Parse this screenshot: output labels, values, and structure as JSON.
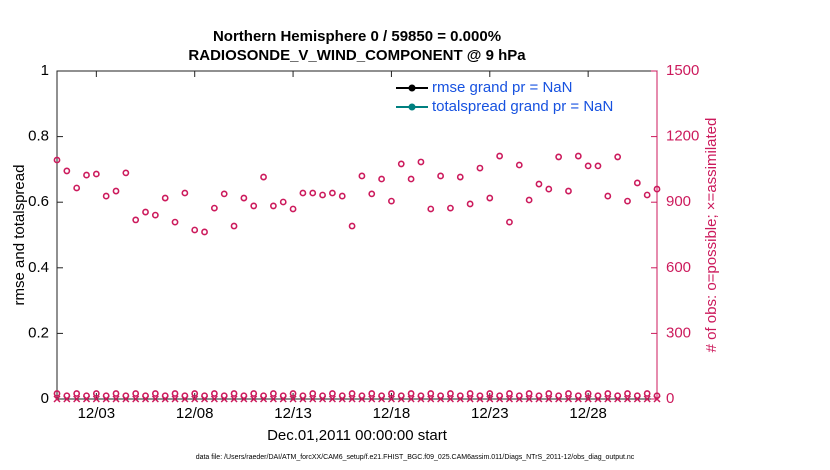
{
  "chart_data": {
    "type": "scatter",
    "title": "Northern Hemisphere 0 / 59850 = 0.000%",
    "subtitle": "RADIOSONDE_V_WIND_COMPONENT @ 9 hPa",
    "xlabel": "Dec.01,2011 00:00:00 start",
    "ylabel": "rmse and totalspread",
    "y2label": "# of obs: o=possible; ×=assimilated",
    "footnote": "data file: /Users/raeder/DAI/ATM_forcXX/CAM6_setup/f.e21.FHIST_BGC.f09_025.CAM6assim.011/Diags_NTrS_2011-12/obs_diag_output.nc",
    "xlim": [
      1,
      31.5
    ],
    "xticks": [
      {
        "value": 3,
        "label": "12/03"
      },
      {
        "value": 8,
        "label": "12/08"
      },
      {
        "value": 13,
        "label": "12/13"
      },
      {
        "value": 18,
        "label": "12/18"
      },
      {
        "value": 23,
        "label": "12/23"
      },
      {
        "value": 28,
        "label": "12/28"
      }
    ],
    "ylim": [
      0,
      1
    ],
    "yticks": [
      0,
      0.2,
      0.4,
      0.6,
      0.8,
      1
    ],
    "y2lim": [
      0,
      1500
    ],
    "y2ticks": [
      0,
      300,
      600,
      900,
      1200,
      1500
    ],
    "y2color": "#cc1a5c",
    "legend": "upper right",
    "legend_text_color": "#1752e0",
    "grid": false,
    "x": [
      1,
      1.5,
      2,
      2.5,
      3,
      3.5,
      4,
      4.5,
      5,
      5.5,
      6,
      6.5,
      7,
      7.5,
      8,
      8.5,
      9,
      9.5,
      10,
      10.5,
      11,
      11.5,
      12,
      12.5,
      13,
      13.5,
      14,
      14.5,
      15,
      15.5,
      16,
      16.5,
      17,
      17.5,
      18,
      18.5,
      19,
      19.5,
      20,
      20.5,
      21,
      21.5,
      22,
      22.5,
      23,
      23.5,
      24,
      24.5,
      25,
      25.5,
      26,
      26.5,
      27,
      27.5,
      28,
      28.5,
      29,
      29.5,
      30,
      30.5,
      31,
      31.5
    ],
    "series": [
      {
        "name": "rmse grand pr = NaN",
        "color": "#000000",
        "axis": "y",
        "values": [
          null,
          null,
          null,
          null,
          null,
          null,
          null,
          null,
          null,
          null,
          null,
          null,
          null,
          null,
          null,
          null,
          null,
          null,
          null,
          null,
          null,
          null,
          null,
          null,
          null,
          null,
          null,
          null,
          null,
          null,
          null,
          null,
          null,
          null,
          null,
          null,
          null,
          null,
          null,
          null,
          null,
          null,
          null,
          null,
          null,
          null,
          null,
          null,
          null,
          null,
          null,
          null,
          null,
          null,
          null,
          null,
          null,
          null,
          null,
          null,
          null,
          null
        ]
      },
      {
        "name": "totalspread grand pr = NaN",
        "color": "#008080",
        "axis": "y",
        "values": [
          null,
          null,
          null,
          null,
          null,
          null,
          null,
          null,
          null,
          null,
          null,
          null,
          null,
          null,
          null,
          null,
          null,
          null,
          null,
          null,
          null,
          null,
          null,
          null,
          null,
          null,
          null,
          null,
          null,
          null,
          null,
          null,
          null,
          null,
          null,
          null,
          null,
          null,
          null,
          null,
          null,
          null,
          null,
          null,
          null,
          null,
          null,
          null,
          null,
          null,
          null,
          null,
          null,
          null,
          null,
          null,
          null,
          null,
          null,
          null,
          null,
          null
        ]
      },
      {
        "color": "#cc1a5c",
        "axis": "y2",
        "marker": "o",
        "values": [
          1093,
          1043,
          965,
          1024,
          1029,
          928,
          951,
          1034,
          819,
          855,
          841,
          919,
          809,
          942,
          773,
          764,
          873,
          938,
          791,
          919,
          883,
          1015,
          883,
          901,
          869,
          942,
          942,
          933,
          942,
          928,
          791,
          1020,
          938,
          1006,
          905,
          1075,
          1006,
          1084,
          869,
          1020,
          873,
          1015,
          892,
          1056,
          919,
          1111,
          809,
          1070,
          910,
          983,
          960,
          1107,
          951,
          1111,
          1066,
          1066,
          928,
          1107,
          905,
          988,
          933,
          960
        ]
      },
      {
        "color": "#cc1a5c",
        "axis": "y2",
        "marker": "o",
        "values": [
          25,
          15,
          25,
          15,
          25,
          15,
          25,
          15,
          25,
          15,
          25,
          15,
          25,
          15,
          25,
          15,
          25,
          15,
          25,
          15,
          25,
          15,
          25,
          15,
          25,
          15,
          25,
          15,
          25,
          15,
          25,
          15,
          25,
          15,
          25,
          15,
          25,
          15,
          25,
          15,
          25,
          15,
          25,
          15,
          25,
          15,
          25,
          15,
          25,
          15,
          25,
          15,
          25,
          15,
          25,
          15,
          25,
          15,
          25,
          15,
          25,
          15
        ]
      },
      {
        "color": "#cc1a5c",
        "axis": "y2",
        "marker": "x",
        "values": [
          0,
          0,
          0,
          0,
          0,
          0,
          0,
          0,
          0,
          0,
          0,
          0,
          0,
          0,
          0,
          0,
          0,
          0,
          0,
          0,
          0,
          0,
          0,
          0,
          0,
          0,
          0,
          0,
          0,
          0,
          0,
          0,
          0,
          0,
          0,
          0,
          0,
          0,
          0,
          0,
          0,
          0,
          0,
          0,
          0,
          0,
          0,
          0,
          0,
          0,
          0,
          0,
          0,
          0,
          0,
          0,
          0,
          0,
          0,
          0,
          0,
          0
        ]
      }
    ]
  }
}
